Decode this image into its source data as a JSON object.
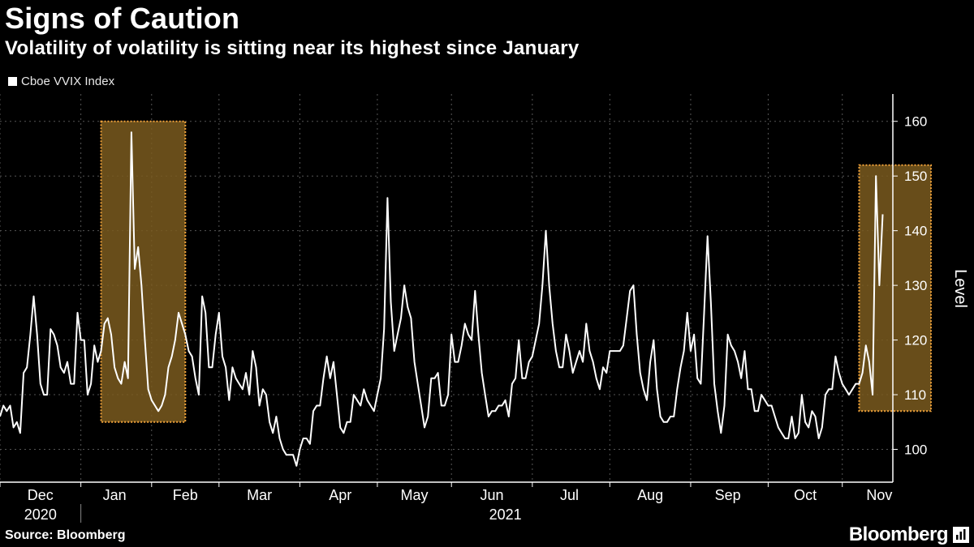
{
  "header": {
    "title": "Signs of Caution",
    "subtitle": "Volatility of volatility is sitting near its highest since January"
  },
  "footer": {
    "source": "Source: Bloomberg",
    "brand": "Bloomberg"
  },
  "colors": {
    "background": "#000000",
    "line": "#ffffff",
    "highlight_fill": "#7a5a1e",
    "highlight_border": "#f0a23a",
    "grid": "#555555"
  },
  "chart_data": {
    "type": "line",
    "title": "Signs of Caution",
    "subtitle": "Volatility of volatility is sitting near its highest since January",
    "legend_position": "top-left",
    "ylabel": "Level",
    "xlabel": "",
    "ylim": [
      94,
      165
    ],
    "yticks": [
      100,
      110,
      120,
      130,
      140,
      150,
      160
    ],
    "grid": true,
    "x_range_index": [
      0,
      265
    ],
    "month_labels": [
      {
        "label": "Dec",
        "index": 12
      },
      {
        "label": "Jan",
        "index": 34
      },
      {
        "label": "Feb",
        "index": 55
      },
      {
        "label": "Mar",
        "index": 77
      },
      {
        "label": "Apr",
        "index": 101
      },
      {
        "label": "May",
        "index": 123
      },
      {
        "label": "Jun",
        "index": 146
      },
      {
        "label": "Jul",
        "index": 169
      },
      {
        "label": "Aug",
        "index": 193
      },
      {
        "label": "Sep",
        "index": 216
      },
      {
        "label": "Oct",
        "index": 239
      },
      {
        "label": "Nov",
        "index": 261
      }
    ],
    "month_boundaries": [
      0,
      24,
      45,
      65,
      89,
      112,
      134,
      158,
      181,
      205,
      228,
      250,
      272
    ],
    "year_labels": [
      {
        "label": "2020",
        "index": 12
      },
      {
        "label": "2021",
        "index": 150
      }
    ],
    "year_divider_index": 24,
    "highlights": [
      {
        "x_start_index": 30,
        "x_end_index": 55,
        "y_low": 105,
        "y_high": 160
      },
      {
        "x_start_index": 255,
        "x_end_index": 280,
        "y_low": 107,
        "y_high": 152
      }
    ],
    "series": [
      {
        "name": "Cboe VVIX Index",
        "values": [
          106,
          108,
          107,
          108,
          104,
          105,
          103,
          114,
          115,
          121,
          128,
          121,
          112,
          110,
          110,
          122,
          121,
          119,
          115,
          114,
          116,
          112,
          112,
          125,
          120,
          120,
          110,
          112,
          119,
          116,
          118,
          123,
          124,
          121,
          115,
          113,
          112,
          116,
          113,
          158,
          133,
          137,
          130,
          120,
          111,
          109,
          108,
          107,
          108,
          110,
          115,
          117,
          120,
          125,
          123,
          121,
          118,
          117,
          113,
          110,
          128,
          125,
          115,
          115,
          121,
          125,
          117,
          115,
          109,
          115,
          113,
          112,
          111,
          114,
          110,
          118,
          115,
          108,
          111,
          110,
          105,
          103,
          106,
          102,
          100,
          99,
          99,
          99,
          97,
          100,
          102,
          102,
          101,
          107,
          108,
          108,
          113,
          117,
          113,
          116,
          110,
          104,
          103,
          105,
          105,
          110,
          109,
          108,
          111,
          109,
          108,
          107,
          110,
          113,
          122,
          146,
          127,
          118,
          121,
          124,
          130,
          126,
          124,
          116,
          112,
          108,
          104,
          106,
          113,
          113,
          114,
          108,
          108,
          110,
          121,
          116,
          116,
          119,
          123,
          121,
          120,
          129,
          121,
          114,
          110,
          106,
          107,
          107,
          108,
          108,
          109,
          106,
          112,
          113,
          120,
          113,
          113,
          116,
          117,
          120,
          123,
          130,
          140,
          130,
          123,
          118,
          115,
          115,
          121,
          118,
          114,
          116,
          118,
          116,
          123,
          118,
          116,
          113,
          111,
          115,
          114,
          118,
          118,
          118,
          118,
          119,
          124,
          129,
          130,
          121,
          114,
          111,
          109,
          116,
          120,
          111,
          106,
          105,
          105,
          106,
          106,
          111,
          115,
          118,
          125,
          118,
          121,
          113,
          112,
          125,
          139,
          127,
          112,
          107,
          103,
          108,
          121,
          119,
          118,
          116,
          113,
          118,
          111,
          111,
          107,
          107,
          110,
          109,
          108,
          108,
          106,
          104,
          103,
          102,
          102,
          106,
          102,
          103,
          110,
          105,
          104,
          107,
          106,
          102,
          104,
          110,
          111,
          111,
          117,
          114,
          112,
          111,
          110,
          111,
          112,
          112,
          114,
          119,
          116,
          110,
          150,
          130,
          143
        ]
      }
    ]
  }
}
